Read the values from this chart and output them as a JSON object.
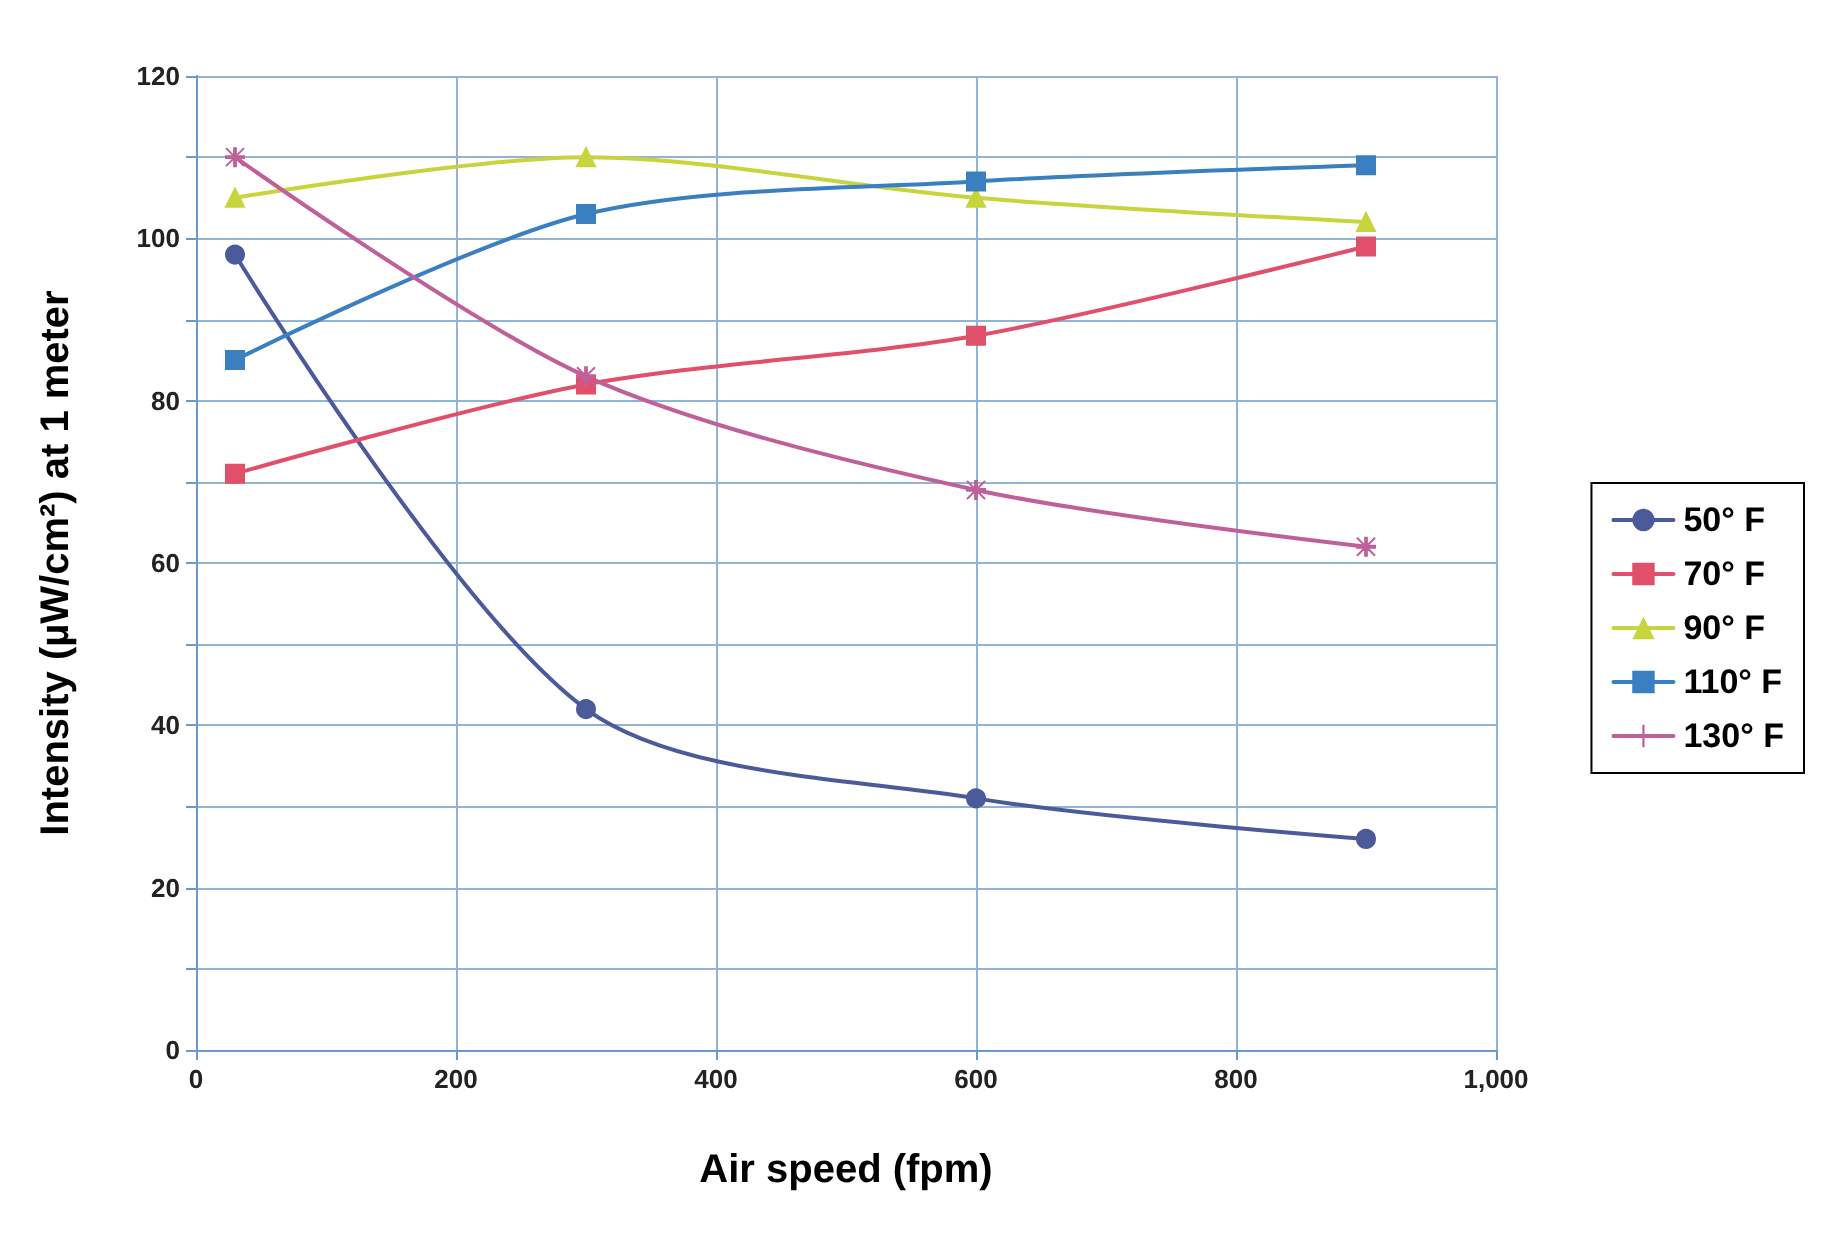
{
  "chart_data": {
    "type": "line",
    "xlabel": "Air speed (fpm)",
    "ylabel": "Intensity (µW/cm²) at 1 meter",
    "x": [
      30,
      300,
      600,
      900
    ],
    "series": [
      {
        "name": "50° F",
        "color": "#4a5a9a",
        "marker": "circle",
        "values": [
          98,
          42,
          31,
          26
        ]
      },
      {
        "name": "70° F",
        "color": "#e0506a",
        "marker": "square",
        "values": [
          71,
          82,
          88,
          99
        ]
      },
      {
        "name": "90° F",
        "color": "#c8d43c",
        "marker": "triangle",
        "values": [
          105,
          110,
          105,
          102
        ]
      },
      {
        "name": "110° F",
        "color": "#3a7fc0",
        "marker": "square",
        "values": [
          85,
          103,
          107,
          109
        ]
      },
      {
        "name": "130° F",
        "color": "#c0609a",
        "marker": "cross",
        "values": [
          110,
          83,
          69,
          62
        ]
      }
    ],
    "xlim": [
      0,
      1000
    ],
    "xticks": [
      0,
      200,
      400,
      600,
      800,
      {
        "value": 1000,
        "label": "1,000"
      }
    ],
    "ylim": [
      0,
      120
    ],
    "yticks": [
      0,
      {
        "value": 10,
        "label": null
      },
      20,
      {
        "value": 30,
        "label": null
      },
      40,
      {
        "value": 50,
        "label": null
      },
      60,
      {
        "value": 70,
        "label": null
      },
      80,
      {
        "value": 90,
        "label": null
      },
      100,
      {
        "value": 110,
        "label": null
      },
      120
    ],
    "grid": true,
    "legend": "right"
  }
}
